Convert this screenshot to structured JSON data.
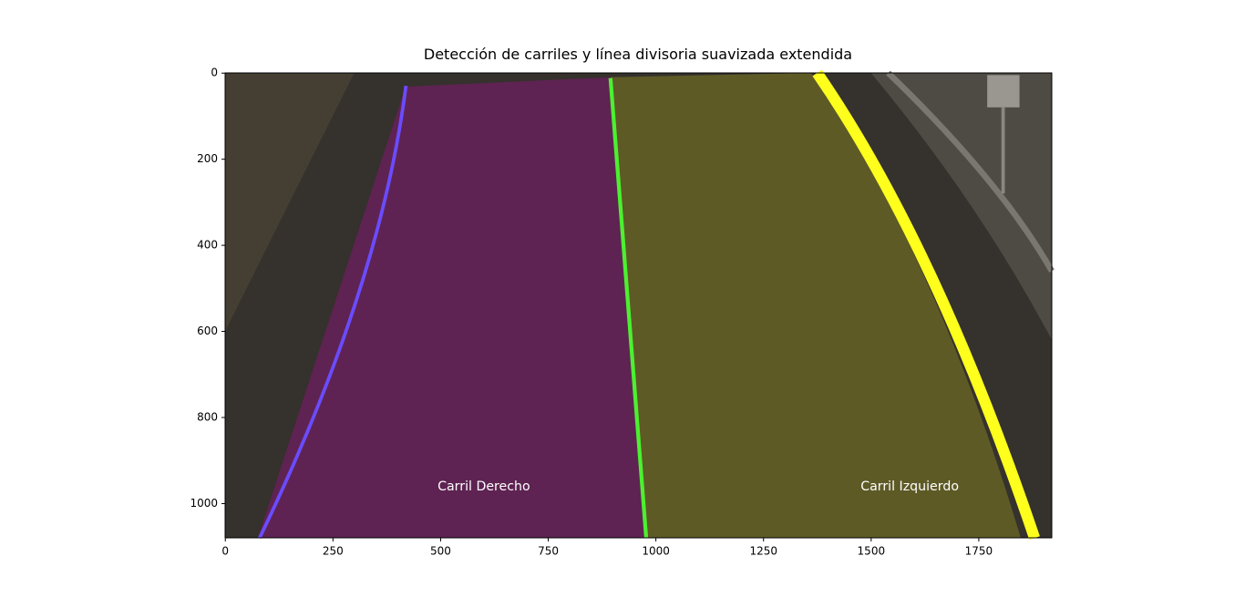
{
  "chart_data": {
    "type": "image",
    "title": "Detección de carriles y línea divisoria suavizada extendida",
    "xlim": [
      -0.5,
      1919.5
    ],
    "ylim": [
      1079.5,
      -0.5
    ],
    "xticks": [
      0,
      250,
      500,
      750,
      1000,
      1250,
      1500,
      1750
    ],
    "yticks": [
      0,
      200,
      400,
      600,
      800,
      1000
    ],
    "annotations": [
      "Carril Derecho",
      "Carril Izquierdo"
    ]
  }
}
